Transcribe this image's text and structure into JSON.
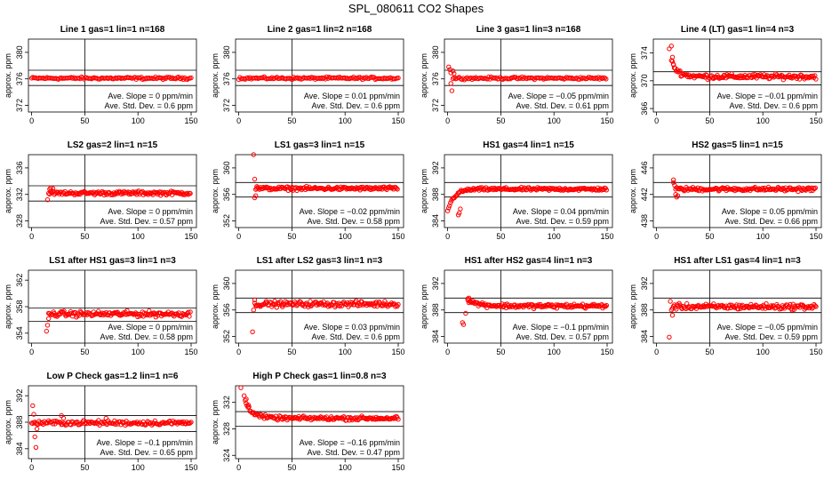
{
  "title": "SPL_080611  CO2 Shapes",
  "labels": {
    "slope_prefix": "Ave. Slope = ",
    "slope_unit": " ppm/min",
    "std_prefix": "Ave. Std. Dev. = ",
    "std_unit": " ppm",
    "ylabel": "approx. ppm",
    "xticks": [
      0,
      50,
      100,
      150
    ]
  },
  "colors": {
    "points": "#ff0000",
    "axes": "#000000"
  },
  "chart_data": [
    {
      "type": "scatter",
      "title": "Line 1 gas=1 lin=1 n=168",
      "ylabel": "approx. ppm",
      "xlim": [
        -3,
        155
      ],
      "ylim": [
        371,
        382
      ],
      "yticks": [
        372,
        376,
        380
      ],
      "vline": 50,
      "hlines": [
        377.3,
        375.0
      ],
      "slope": "0",
      "std": "0.6",
      "series": {
        "pattern": "flat",
        "x_start": 0,
        "x_end": 150,
        "step": 1.2,
        "y": 376.1,
        "noise": 0.15
      }
    },
    {
      "type": "scatter",
      "title": "Line 2 gas=1 lin=2 n=168",
      "ylabel": "approx. ppm",
      "xlim": [
        -3,
        155
      ],
      "ylim": [
        371,
        382
      ],
      "yticks": [
        372,
        376,
        380
      ],
      "vline": 50,
      "hlines": [
        377.3,
        375.0
      ],
      "slope": "0.01",
      "std": "0.6",
      "series": {
        "pattern": "flat",
        "x_start": 0,
        "x_end": 150,
        "step": 1.2,
        "y": 376.1,
        "noise": 0.15
      }
    },
    {
      "type": "scatter",
      "title": "Line 3 gas=1 lin=3 n=168",
      "ylabel": "approx. ppm",
      "xlim": [
        -3,
        155
      ],
      "ylim": [
        371,
        382
      ],
      "yticks": [
        372,
        376,
        380
      ],
      "vline": 50,
      "hlines": [
        377.3,
        375.0
      ],
      "slope": "−0.05",
      "std": "0.61",
      "series": {
        "pattern": "flat",
        "x_start": 5,
        "x_end": 150,
        "step": 1.2,
        "y": 376.1,
        "noise": 0.15,
        "extra": [
          [
            1,
            377.8
          ],
          [
            2,
            377.4
          ],
          [
            3,
            376.9
          ],
          [
            3,
            375.3
          ],
          [
            4,
            374.2
          ],
          [
            5,
            377.2
          ],
          [
            6,
            376.8
          ]
        ]
      }
    },
    {
      "type": "scatter",
      "title": "Line 4 (LT) gas=1 lin=4 n=3",
      "ylabel": "approx. ppm",
      "xlim": [
        -3,
        155
      ],
      "ylim": [
        365.5,
        376
      ],
      "yticks": [
        366,
        370,
        374
      ],
      "vline": 50,
      "hlines": [
        371.3,
        369.4
      ],
      "slope": "−0.01",
      "std": "0.6",
      "series": {
        "pattern": "decay",
        "x_start": 14,
        "x_end": 150,
        "step": 0.9,
        "y": 370.6,
        "noise": 0.3,
        "amp": 2.2,
        "tau": 6,
        "extra": [
          [
            12,
            374.6
          ],
          [
            14,
            375.0
          ],
          [
            15,
            373.4
          ],
          [
            16,
            372.3
          ]
        ]
      }
    },
    {
      "type": "scatter",
      "title": "LS2 gas=2 lin=1 n=15",
      "ylabel": "approx. ppm",
      "xlim": [
        -3,
        155
      ],
      "ylim": [
        327,
        338
      ],
      "yticks": [
        328,
        332,
        336
      ],
      "vline": 50,
      "hlines": [
        333.3,
        331.0
      ],
      "slope": "0",
      "std": "0.57",
      "series": {
        "pattern": "flat",
        "x_start": 16,
        "x_end": 150,
        "step": 0.9,
        "y": 332.2,
        "noise": 0.25,
        "extra": [
          [
            15,
            331.2
          ],
          [
            17,
            332.8
          ],
          [
            18,
            333.0
          ],
          [
            20,
            332.9
          ]
        ]
      }
    },
    {
      "type": "scatter",
      "title": "LS1 gas=3 lin=1 n=15",
      "ylabel": "approx. ppm",
      "xlim": [
        -3,
        155
      ],
      "ylim": [
        351,
        362
      ],
      "yticks": [
        352,
        356,
        360
      ],
      "vline": 50,
      "hlines": [
        357.8,
        355.6
      ],
      "slope": "−0.02",
      "std": "0.58",
      "series": {
        "pattern": "flat",
        "x_start": 16,
        "x_end": 150,
        "step": 0.9,
        "y": 356.9,
        "noise": 0.22,
        "extra": [
          [
            14,
            362.0
          ],
          [
            15,
            358.3
          ],
          [
            15,
            355.5
          ],
          [
            16,
            355.8
          ],
          [
            17,
            357.2
          ]
        ]
      }
    },
    {
      "type": "scatter",
      "title": "HS1 gas=4 lin=1 n=15",
      "ylabel": "approx. ppm",
      "xlim": [
        -3,
        155
      ],
      "ylim": [
        383,
        394
      ],
      "yticks": [
        384,
        388,
        392
      ],
      "vline": 50,
      "hlines": [
        389.8,
        387.6
      ],
      "slope": "0.04",
      "std": "0.59",
      "series": {
        "pattern": "recover",
        "x_start": 0,
        "x_end": 150,
        "step": 0.9,
        "y": 388.8,
        "noise": 0.2,
        "amp": 3.3,
        "tau": 6,
        "extra": [
          [
            10,
            384.9
          ],
          [
            11,
            385.2
          ],
          [
            12,
            385.8
          ]
        ]
      }
    },
    {
      "type": "scatter",
      "title": "HS2 gas=5 lin=1 n=15",
      "ylabel": "approx. ppm",
      "xlim": [
        -3,
        155
      ],
      "ylim": [
        437,
        448
      ],
      "yticks": [
        438,
        442,
        446
      ],
      "vline": 50,
      "hlines": [
        443.8,
        441.6
      ],
      "slope": "0.05",
      "std": "0.66",
      "series": {
        "pattern": "flat",
        "x_start": 18,
        "x_end": 150,
        "step": 0.9,
        "y": 442.8,
        "noise": 0.25,
        "extra": [
          [
            16,
            444.2
          ],
          [
            16,
            443.8
          ],
          [
            17,
            443.4
          ],
          [
            18,
            442.0
          ],
          [
            19,
            441.6
          ],
          [
            20,
            441.8
          ]
        ]
      }
    },
    {
      "type": "scatter",
      "title": "LS1 after HS1 gas=3 lin=1 n=3",
      "ylabel": "approx. ppm",
      "xlim": [
        -3,
        155
      ],
      "ylim": [
        352.5,
        363.5
      ],
      "yticks": [
        354,
        358,
        362
      ],
      "vline": 50,
      "hlines": [
        357.8,
        355.8
      ],
      "slope": "0",
      "std": "0.58",
      "series": {
        "pattern": "flat",
        "x_start": 16,
        "x_end": 150,
        "step": 0.9,
        "y": 356.9,
        "noise": 0.35,
        "extra": [
          [
            14,
            354.3
          ],
          [
            15,
            355.2
          ],
          [
            16,
            356.2
          ]
        ]
      }
    },
    {
      "type": "scatter",
      "title": "LS1 after LS2 gas=3 lin=1 n=3",
      "ylabel": "approx. ppm",
      "xlim": [
        -3,
        155
      ],
      "ylim": [
        351,
        362
      ],
      "yticks": [
        352,
        356,
        360
      ],
      "vline": 50,
      "hlines": [
        357.8,
        355.6
      ],
      "slope": "0.03",
      "std": "0.6",
      "series": {
        "pattern": "flat",
        "x_start": 15,
        "x_end": 150,
        "step": 0.9,
        "y": 356.9,
        "noise": 0.35,
        "extra": [
          [
            13,
            352.7
          ],
          [
            14,
            356.0
          ],
          [
            15,
            357.5
          ]
        ]
      }
    },
    {
      "type": "scatter",
      "title": "HS1 after HS2 gas=4 lin=1 n=3",
      "ylabel": "approx. ppm",
      "xlim": [
        -3,
        155
      ],
      "ylim": [
        383,
        394
      ],
      "yticks": [
        384,
        388,
        392
      ],
      "vline": 50,
      "hlines": [
        389.8,
        387.6
      ],
      "slope": "−0.1",
      "std": "0.57",
      "series": {
        "pattern": "decay",
        "x_start": 19,
        "x_end": 150,
        "step": 0.9,
        "y": 388.6,
        "noise": 0.28,
        "amp": 0.9,
        "tau": 10,
        "extra": [
          [
            14,
            386.1
          ],
          [
            15,
            385.8
          ],
          [
            17,
            387.5
          ],
          [
            19,
            389.5
          ],
          [
            20,
            389.8
          ]
        ]
      }
    },
    {
      "type": "scatter",
      "title": "HS1 after LS1 gas=4 lin=1 n=3",
      "ylabel": "approx. ppm",
      "xlim": [
        -3,
        155
      ],
      "ylim": [
        383,
        394
      ],
      "yticks": [
        384,
        388,
        392
      ],
      "vline": 50,
      "hlines": [
        389.8,
        387.6
      ],
      "slope": "−0.05",
      "std": "0.59",
      "series": {
        "pattern": "flat",
        "x_start": 15,
        "x_end": 150,
        "step": 0.9,
        "y": 388.5,
        "noise": 0.35,
        "extra": [
          [
            12,
            383.9
          ],
          [
            13,
            389.3
          ],
          [
            14,
            388.0
          ],
          [
            15,
            387.2
          ]
        ]
      }
    },
    {
      "type": "scatter",
      "title": "Low P Check gas=1.2 lin=1 n=6",
      "ylabel": "approx. ppm",
      "xlim": [
        -3,
        155
      ],
      "ylim": [
        382.5,
        393.5
      ],
      "yticks": [
        384,
        388,
        392
      ],
      "vline": 50,
      "hlines": [
        389.0,
        386.6
      ],
      "slope": "−0.1",
      "std": "0.65",
      "series": {
        "pattern": "flat",
        "x_start": 0,
        "x_end": 150,
        "step": 1.0,
        "y": 387.9,
        "noise": 0.3,
        "extra": [
          [
            1,
            390.5
          ],
          [
            2,
            389.2
          ],
          [
            3,
            385.8
          ],
          [
            4,
            384.2
          ],
          [
            5,
            387.0
          ],
          [
            28,
            389.0
          ],
          [
            30,
            388.6
          ],
          [
            70,
            388.6
          ]
        ]
      }
    },
    {
      "type": "scatter",
      "title": "High P Check gas=1 lin=0.8 n=3",
      "ylabel": "approx. ppm",
      "xlim": [
        -3,
        155
      ],
      "ylim": [
        323.5,
        334.5
      ],
      "yticks": [
        324,
        328,
        332
      ],
      "vline": 50,
      "hlines": [
        330.6,
        328.4
      ],
      "slope": "−0.16",
      "std": "0.47",
      "series": {
        "pattern": "decay",
        "x_start": 6,
        "x_end": 150,
        "step": 0.9,
        "y": 329.6,
        "noise": 0.25,
        "amp": 2.6,
        "tau": 7,
        "extra": [
          [
            2,
            334.2
          ],
          [
            5,
            333.0
          ],
          [
            7,
            332.5
          ],
          [
            9,
            331.6
          ]
        ]
      }
    }
  ]
}
